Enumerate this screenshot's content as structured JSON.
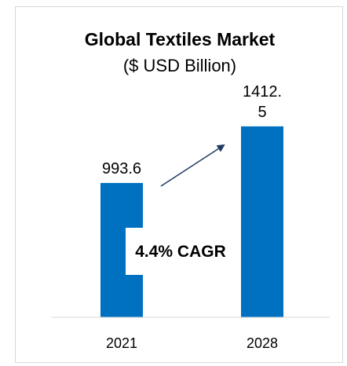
{
  "chart_data": {
    "type": "bar",
    "title": "Global Textiles Market",
    "subtitle": "($ USD Billion)",
    "categories": [
      "2021",
      "2028"
    ],
    "values": [
      993.6,
      1412.5
    ],
    "data_labels": [
      "993.6",
      "1412.5"
    ],
    "data_label_lines": [
      [
        "993.6"
      ],
      [
        "1412.",
        "5"
      ]
    ],
    "annotation": "4.4% CAGR",
    "ylim": [
      0,
      1650
    ],
    "grid": false,
    "legend": "none",
    "bar_color": "#0070c0",
    "arrow_color": "#1f3864"
  }
}
